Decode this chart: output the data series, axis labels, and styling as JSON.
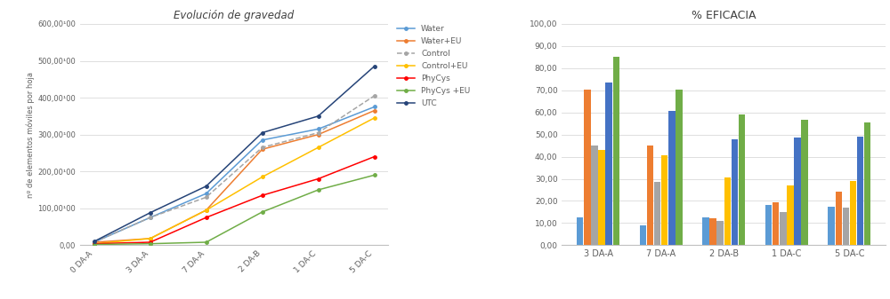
{
  "line_title": "Evolución de gravedad",
  "line_ylabel": "nº de elementos móviles por hoja",
  "line_categories": [
    "0 DA-A",
    "3 DA-A",
    "7 DA-A",
    "2 DA-B",
    "1 DA-C",
    "5 DA-C"
  ],
  "line_series": {
    "Water": [
      8000,
      75000,
      140000,
      285000,
      315000,
      375000
    ],
    "Water+EU": [
      8000,
      18000,
      95000,
      260000,
      300000,
      365000
    ],
    "Control": [
      8000,
      75000,
      130000,
      265000,
      305000,
      405000
    ],
    "Control+EU": [
      4000,
      18000,
      95000,
      185000,
      265000,
      345000
    ],
    "PhyCys": [
      4000,
      8000,
      75000,
      135000,
      180000,
      240000
    ],
    "PhyCys +EU": [
      2000,
      4000,
      8000,
      90000,
      150000,
      190000
    ],
    "UTC": [
      10000,
      88000,
      160000,
      305000,
      350000,
      485000
    ]
  },
  "line_colors": {
    "Water": "#5B9BD5",
    "Water+EU": "#ED7D31",
    "Control": "#A5A5A5",
    "Control+EU": "#FFC000",
    "PhyCys": "#FF0000",
    "PhyCys +EU": "#70AD47",
    "UTC": "#264478"
  },
  "line_ytick_labels": [
    "0,00",
    "100,00¹00",
    "200,00¹00",
    "300,00¹00",
    "400,00¹00",
    "500,00¹00",
    "600,00¹00"
  ],
  "line_ylim": [
    0,
    600000
  ],
  "line_yticks": [
    0,
    100000,
    200000,
    300000,
    400000,
    500000,
    600000
  ],
  "bar_title": "% EFICACIA",
  "bar_categories": [
    "3 DA-A",
    "7 DA-A",
    "2 DA-B",
    "1 DA-C",
    "5 DA-C"
  ],
  "bar_series": {
    "Water": [
      12.5,
      9.0,
      12.5,
      18.0,
      17.5
    ],
    "Water+EU": [
      70.5,
      45.0,
      12.0,
      19.5,
      24.0
    ],
    "Control": [
      45.0,
      28.5,
      11.0,
      15.0,
      17.0
    ],
    "Control+EU": [
      43.0,
      40.5,
      30.5,
      27.0,
      29.0
    ],
    "PhyCys": [
      73.5,
      60.5,
      48.0,
      48.5,
      49.0
    ],
    "PhyCys +EU": [
      85.0,
      70.5,
      59.0,
      56.5,
      55.5
    ]
  },
  "bar_colors": {
    "Water": "#5B9BD5",
    "Water+EU": "#ED7D31",
    "Control": "#A5A5A5",
    "Control+EU": "#FFC000",
    "PhyCys": "#4472C4",
    "PhyCys +EU": "#70AD47"
  },
  "bar_ylim": [
    0,
    100
  ],
  "bar_yticks": [
    0,
    10,
    20,
    30,
    40,
    50,
    60,
    70,
    80,
    90,
    100
  ],
  "bar_ytick_labels": [
    "0,00",
    "10,00",
    "20,00",
    "30,00",
    "40,00",
    "50,00",
    "60,00",
    "70,00",
    "80,00",
    "90,00",
    "100,00"
  ],
  "background_color": "#FFFFFF",
  "grid_color": "#D9D9D9"
}
